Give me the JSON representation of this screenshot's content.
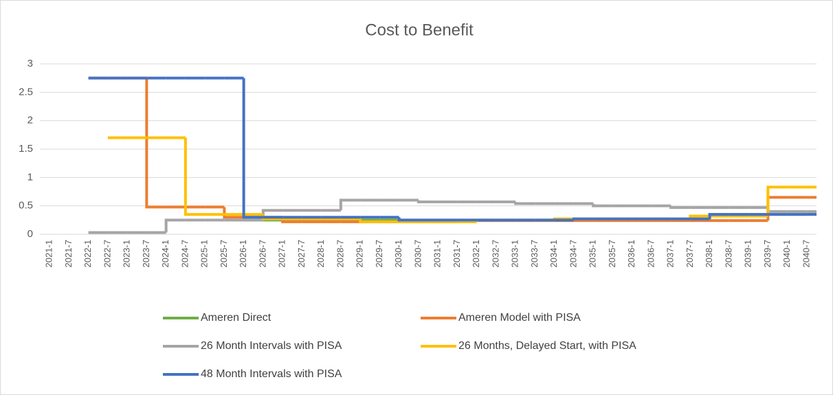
{
  "chart_data": {
    "type": "line",
    "line_style": "step",
    "title": "Cost to Benefit",
    "categories": [
      "2021-1",
      "2021-7",
      "2022-1",
      "2022-7",
      "2023-1",
      "2023-7",
      "2024-1",
      "2024-7",
      "2025-1",
      "2025-7",
      "2026-1",
      "2026-7",
      "2027-1",
      "2027-7",
      "2028-1",
      "2028-7",
      "2029-1",
      "2029-7",
      "2030-1",
      "2030-7",
      "2031-1",
      "2031-7",
      "2032-1",
      "2032-7",
      "2033-1",
      "2033-7",
      "2034-1",
      "2034-7",
      "2035-1",
      "2035-7",
      "2036-1",
      "2036-7",
      "2037-1",
      "2037-7",
      "2038-1",
      "2038-7",
      "2039-1",
      "2039-7",
      "2040-1",
      "2040-7"
    ],
    "ylim": [
      0,
      3
    ],
    "yticks": [
      0,
      0.5,
      1,
      1.5,
      2,
      2.5,
      3
    ],
    "grid": true,
    "legend": "bottom",
    "series": [
      {
        "name": "Ameren Direct",
        "color": "#70ad47",
        "values": [
          null,
          null,
          null,
          null,
          null,
          null,
          null,
          null,
          null,
          null,
          0.25,
          0.25,
          0.25,
          0.25,
          0.25,
          0.25,
          0.25,
          0.25,
          0.25,
          0.25,
          0.25,
          0.25,
          0.25,
          0.25,
          0.25,
          0.25,
          0.25,
          0.25,
          0.25,
          0.25,
          0.25,
          0.25,
          0.25,
          0.25,
          0.35,
          0.35,
          0.35,
          0.35,
          0.35,
          0.35
        ]
      },
      {
        "name": "Ameren Model with PISA",
        "color": "#ed7d31",
        "values": [
          null,
          null,
          2.75,
          2.75,
          2.75,
          0.48,
          0.48,
          0.48,
          0.48,
          0.3,
          0.3,
          0.3,
          0.22,
          0.22,
          0.22,
          0.22,
          0.22,
          0.22,
          0.22,
          0.22,
          0.22,
          0.24,
          0.24,
          0.24,
          0.24,
          0.24,
          0.24,
          0.24,
          0.24,
          0.24,
          0.24,
          0.24,
          0.24,
          0.24,
          0.24,
          0.24,
          0.24,
          0.65,
          0.65,
          0.65
        ]
      },
      {
        "name": "26 Month Intervals with PISA",
        "color": "#a5a5a5",
        "values": [
          null,
          null,
          0.03,
          0.03,
          0.03,
          0.03,
          0.25,
          0.25,
          0.25,
          0.25,
          0.25,
          0.42,
          0.42,
          0.42,
          0.42,
          0.6,
          0.6,
          0.6,
          0.6,
          0.57,
          0.57,
          0.57,
          0.57,
          0.57,
          0.54,
          0.54,
          0.54,
          0.54,
          0.5,
          0.5,
          0.5,
          0.5,
          0.47,
          0.47,
          0.47,
          0.47,
          0.47,
          0.4,
          0.4,
          0.4
        ]
      },
      {
        "name": "26 Months, Delayed Start, with PISA",
        "color": "#ffc000",
        "values": [
          null,
          null,
          null,
          1.7,
          1.7,
          1.7,
          1.7,
          0.35,
          0.35,
          0.35,
          0.35,
          0.27,
          0.27,
          0.27,
          0.27,
          0.27,
          0.22,
          0.22,
          0.22,
          0.22,
          0.22,
          0.22,
          0.25,
          0.25,
          0.25,
          0.25,
          0.27,
          0.27,
          0.27,
          0.27,
          0.27,
          0.27,
          0.27,
          0.32,
          0.32,
          0.32,
          0.32,
          0.83,
          0.83,
          0.83
        ]
      },
      {
        "name": "48 Month Intervals with PISA",
        "color": "#4472c4",
        "values": [
          null,
          null,
          2.75,
          2.75,
          2.75,
          2.75,
          2.75,
          2.75,
          2.75,
          2.75,
          0.3,
          0.3,
          0.3,
          0.3,
          0.3,
          0.3,
          0.3,
          0.3,
          0.25,
          0.25,
          0.25,
          0.25,
          0.25,
          0.25,
          0.25,
          0.25,
          0.25,
          0.27,
          0.27,
          0.27,
          0.27,
          0.27,
          0.27,
          0.27,
          0.35,
          0.35,
          0.35,
          0.35,
          0.35,
          0.35
        ]
      }
    ]
  }
}
